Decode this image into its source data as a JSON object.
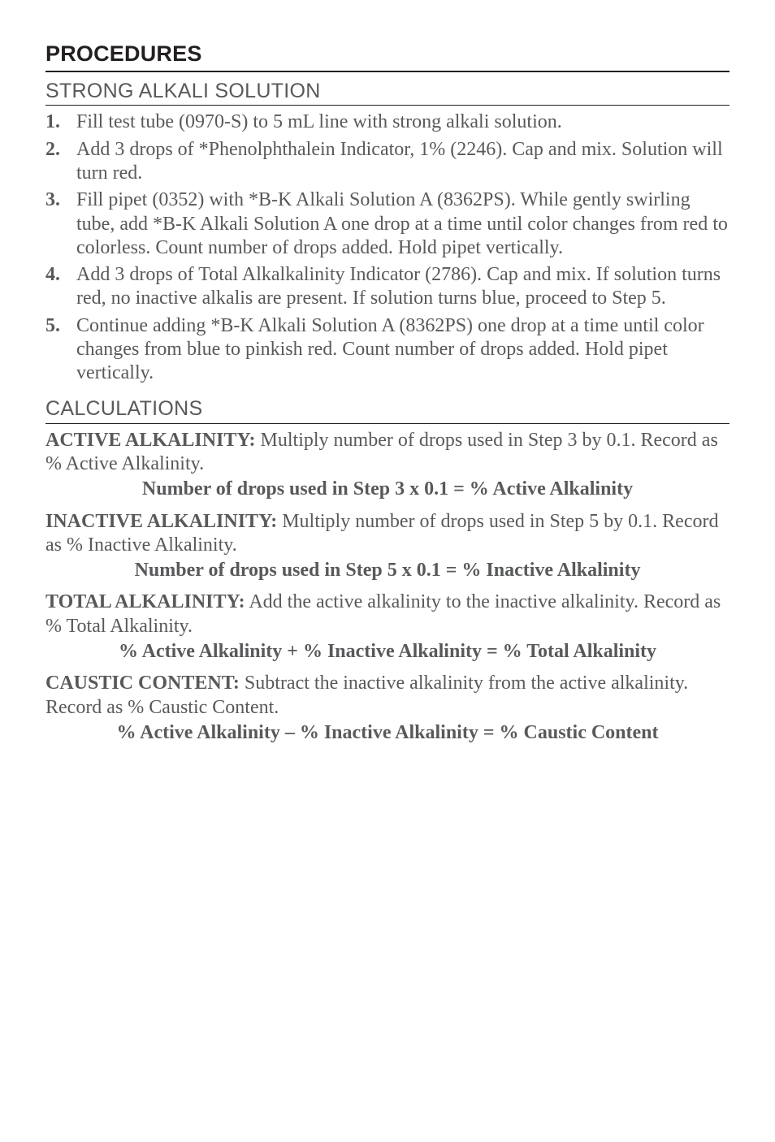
{
  "headers": {
    "procedures": "PROCEDURES",
    "strong_alkali": "STRONG ALKALI SOLUTION",
    "calculations": "CALCULATIONS"
  },
  "steps": [
    {
      "num": "1.",
      "text": "Fill test tube (0970-S) to 5 mL line with strong alkali solution."
    },
    {
      "num": "2.",
      "text": "Add 3 drops of *Phenolphthalein Indicator, 1% (2246). Cap and mix. Solution will turn red."
    },
    {
      "num": "3.",
      "text": "Fill pipet (0352) with *B-K Alkali Solution A (8362PS). While gently swirling tube, add *B-K Alkali Solution A one drop at a time until color changes from red to colorless. Count number of drops added. Hold pipet vertically."
    },
    {
      "num": "4.",
      "text": "Add 3 drops of Total Alkalkalinity Indicator (2786). Cap and mix. If solution turns red, no inactive alkalis are present. If solution turns blue, proceed to Step 5."
    },
    {
      "num": "5.",
      "text": "Continue adding *B-K Alkali Solution A (8362PS) one drop at a time until color changes from blue to pinkish red. Count number of drops added. Hold pipet vertically."
    }
  ],
  "calc": {
    "active": {
      "lead": "ACTIVE ALKALINITY:",
      "body": " Multiply number of drops used in Step 3 by 0.1. Record as % Active Alkalinity.",
      "formula": "Number of drops used in Step 3 x 0.1 = % Active Alkalinity"
    },
    "inactive": {
      "lead": "INACTIVE ALKALINITY:",
      "body": " Multiply number of drops used in Step 5 by 0.1. Record as % Inactive Alkalinity.",
      "formula": "Number of drops used in Step 5 x 0.1 = % Inactive Alkalinity"
    },
    "total": {
      "lead": "TOTAL ALKALINITY:",
      "body": " Add the active alkalinity to the inactive alkalinity. Record as % Total Alkalinity.",
      "formula": "% Active Alkalinity + % Inactive Alkalinity = % Total Alkalinity"
    },
    "caustic": {
      "lead": "CAUSTIC CONTENT:",
      "body": " Subtract the inactive alkalinity from the active alkalinity. Record as % Caustic Content.",
      "formula": "% Active Alkalinity – % Inactive Alkalinity = % Caustic Content"
    }
  }
}
